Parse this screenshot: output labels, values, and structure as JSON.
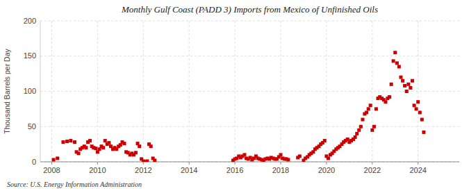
{
  "chart_data": {
    "type": "scatter",
    "title": "Monthly Gulf Coast (PADD 3) Imports from Mexico of Unfinished Oils",
    "ylabel": "Thousand Barrels per Day",
    "annotations": [
      "Source: U.S. Energy Information Administration"
    ],
    "color": "#cc0000",
    "marker": "square",
    "grid": true,
    "xlim": [
      2007.5,
      2025.8
    ],
    "xticks": [
      2008,
      2010,
      2012,
      2014,
      2016,
      2018,
      2020,
      2022,
      2024
    ],
    "ylim": [
      0,
      200
    ],
    "yticks": [
      0,
      50,
      100,
      150,
      200
    ],
    "x": [
      2008.08,
      2008.25,
      2008.5,
      2008.67,
      2008.83,
      2009.0,
      2009.08,
      2009.17,
      2009.25,
      2009.33,
      2009.42,
      2009.5,
      2009.58,
      2009.67,
      2009.75,
      2009.83,
      2009.92,
      2010.0,
      2010.08,
      2010.17,
      2010.25,
      2010.33,
      2010.42,
      2010.5,
      2010.58,
      2010.67,
      2010.75,
      2010.83,
      2010.92,
      2011.0,
      2011.08,
      2011.17,
      2011.25,
      2011.33,
      2011.42,
      2011.5,
      2011.58,
      2011.67,
      2011.75,
      2011.83,
      2011.92,
      2012.0,
      2012.08,
      2012.17,
      2012.25,
      2012.33,
      2012.42,
      2012.5,
      2015.92,
      2016.0,
      2016.08,
      2016.17,
      2016.25,
      2016.33,
      2016.42,
      2016.5,
      2016.58,
      2016.67,
      2016.75,
      2016.83,
      2016.92,
      2017.0,
      2017.08,
      2017.17,
      2017.25,
      2017.33,
      2017.42,
      2017.5,
      2017.58,
      2017.67,
      2017.75,
      2017.83,
      2017.92,
      2018.0,
      2018.08,
      2018.17,
      2018.25,
      2018.33,
      2018.75,
      2018.83,
      2019.0,
      2019.08,
      2019.17,
      2019.25,
      2019.33,
      2019.42,
      2019.5,
      2019.58,
      2019.67,
      2019.75,
      2019.83,
      2019.92,
      2020.0,
      2020.08,
      2020.17,
      2020.25,
      2020.33,
      2020.42,
      2020.5,
      2020.58,
      2020.67,
      2020.75,
      2020.83,
      2020.92,
      2021.0,
      2021.08,
      2021.17,
      2021.25,
      2021.33,
      2021.42,
      2021.5,
      2021.58,
      2021.67,
      2021.75,
      2021.83,
      2021.92,
      2022.0,
      2022.08,
      2022.17,
      2022.25,
      2022.33,
      2022.42,
      2022.5,
      2022.58,
      2022.67,
      2022.75,
      2022.83,
      2022.92,
      2023.0,
      2023.08,
      2023.17,
      2023.25,
      2023.33,
      2023.42,
      2023.5,
      2023.58,
      2023.67,
      2023.75,
      2023.83,
      2023.92,
      2024.0,
      2024.08,
      2024.17,
      2024.25
    ],
    "values": [
      3,
      5,
      28,
      29,
      30,
      28,
      14,
      12,
      18,
      20,
      22,
      20,
      28,
      30,
      22,
      20,
      19,
      14,
      18,
      22,
      20,
      30,
      25,
      27,
      22,
      18,
      20,
      18,
      22,
      24,
      28,
      26,
      14,
      13,
      10,
      12,
      10,
      13,
      26,
      22,
      4,
      1,
      0,
      1,
      25,
      22,
      5,
      2,
      2,
      4,
      5,
      8,
      6,
      8,
      10,
      5,
      4,
      6,
      3,
      5,
      8,
      5,
      4,
      3,
      2,
      4,
      5,
      4,
      6,
      5,
      4,
      4,
      7,
      10,
      5,
      4,
      4,
      3,
      6,
      8,
      2,
      5,
      7,
      10,
      12,
      14,
      18,
      20,
      22,
      25,
      27,
      30,
      8,
      5,
      10,
      12,
      15,
      18,
      20,
      22,
      25,
      28,
      30,
      32,
      28,
      30,
      32,
      35,
      40,
      45,
      50,
      60,
      68,
      70,
      75,
      80,
      45,
      50,
      75,
      90,
      92,
      90,
      88,
      85,
      90,
      92,
      110,
      143,
      155,
      140,
      135,
      120,
      115,
      108,
      100,
      110,
      105,
      115,
      80,
      75,
      85,
      70,
      60,
      42
    ]
  }
}
